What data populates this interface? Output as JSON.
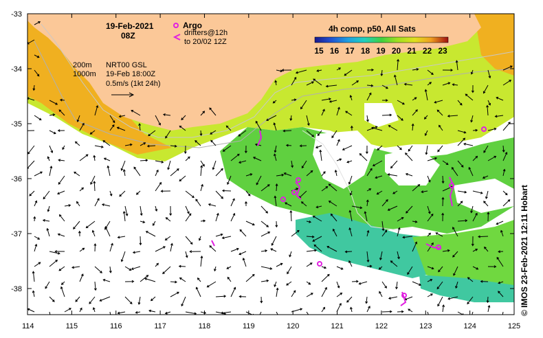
{
  "header": {
    "date": "19-Feb-2021",
    "hour": "08Z"
  },
  "legend_markers": {
    "argo_label": "Argo",
    "drifters_line1": "drifters@12h",
    "drifters_line2": "to 20/02 12Z",
    "argo_color": "#e020e0"
  },
  "contour_legend": {
    "line1": "200m",
    "line2": "1000m"
  },
  "current_legend": {
    "line1": "NRT00 GSL",
    "line2": "19-Feb 18:00Z",
    "line3": "0.5m/s (1kt 24h)"
  },
  "colorbar": {
    "title": "4h comp, p50, All Sats",
    "ticks": [
      "15",
      "16",
      "17",
      "18",
      "19",
      "20",
      "21",
      "22",
      "23"
    ],
    "colors": [
      "#1a1a8c",
      "#2050d0",
      "#20a0e0",
      "#20d0c0",
      "#40d040",
      "#a0e020",
      "#e0e020",
      "#f0a020",
      "#e05010",
      "#a01010"
    ]
  },
  "axes": {
    "x_ticks": [
      "114",
      "115",
      "116",
      "117",
      "118",
      "119",
      "120",
      "121",
      "122",
      "123",
      "124",
      "125"
    ],
    "y_ticks": [
      "-33",
      "-34",
      "-35",
      "-36",
      "-37",
      "-38"
    ]
  },
  "colors": {
    "land": "#fbc898",
    "ocean_warm": "#a8e830",
    "ocean_mid": "#60d040",
    "ocean_cool": "#40c8a0",
    "no_data": "#ffffff"
  },
  "credit": "© IMOS 23-Feb-2021 12:11 Hobart"
}
